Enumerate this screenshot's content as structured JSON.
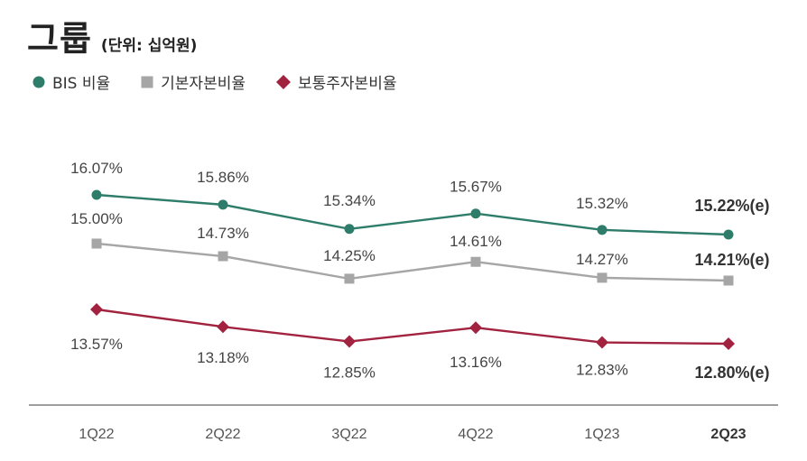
{
  "header": {
    "title": "그룹",
    "unit": "(단위: 십억원)"
  },
  "colors": {
    "bis": "#2e7d6b",
    "tier1": "#a6a6a6",
    "cet1": "#a1233f",
    "axis": "#7f7f7f",
    "label": "#444444"
  },
  "chart_data": {
    "type": "line",
    "title": "그룹",
    "categories": [
      "1Q22",
      "2Q22",
      "3Q22",
      "4Q22",
      "1Q23",
      "2Q23"
    ],
    "highlight_category": "2Q23",
    "series": [
      {
        "name": "BIS 비율",
        "marker": "circle",
        "values": [
          16.07,
          15.86,
          15.34,
          15.67,
          15.32,
          15.22
        ],
        "labels": [
          "16.07%",
          "15.86%",
          "15.34%",
          "15.67%",
          "15.32%",
          "15.22%(e)"
        ]
      },
      {
        "name": "기본자본비율",
        "marker": "square",
        "values": [
          15.0,
          14.73,
          14.25,
          14.61,
          14.27,
          14.21
        ],
        "labels": [
          "15.00%",
          "14.73%",
          "14.25%",
          "14.61%",
          "14.27%",
          "14.21%(e)"
        ]
      },
      {
        "name": "보통주자본비율",
        "marker": "diamond",
        "values": [
          13.57,
          13.18,
          12.85,
          13.16,
          12.83,
          12.8
        ],
        "labels": [
          "13.57%",
          "13.18%",
          "12.85%",
          "13.16%",
          "12.83%",
          "12.80%(e)"
        ]
      }
    ],
    "legend_position": "top-left",
    "grid": false
  }
}
